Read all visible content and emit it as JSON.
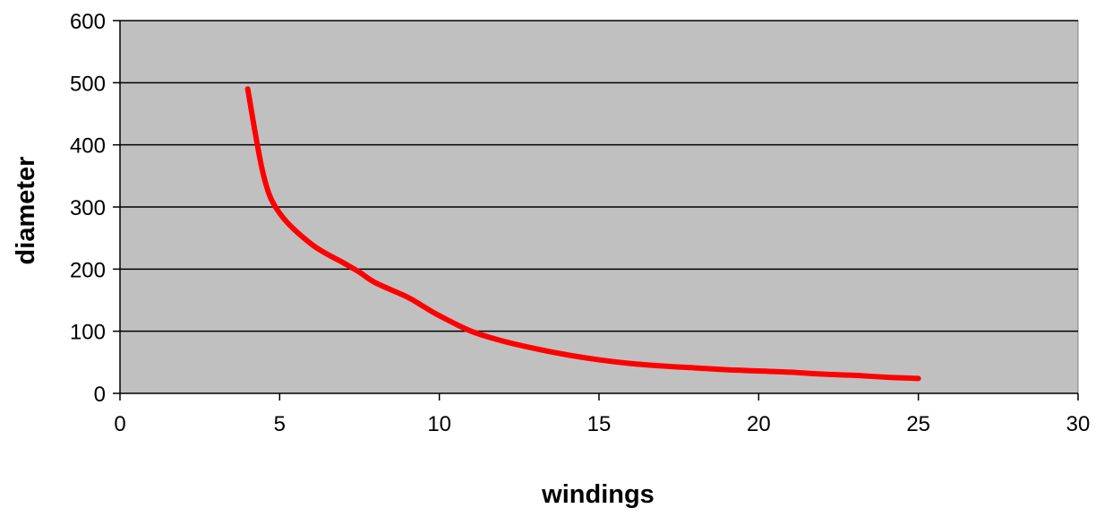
{
  "chart_data": {
    "type": "line",
    "title": "",
    "xlabel": "windings",
    "ylabel": "diameter",
    "xlim": [
      0,
      30
    ],
    "ylim": [
      0,
      600
    ],
    "x_ticks": [
      0,
      5,
      10,
      15,
      20,
      25,
      30
    ],
    "y_ticks": [
      0,
      100,
      200,
      300,
      400,
      500,
      600
    ],
    "grid": "horizontal",
    "legend": "none",
    "series": [
      {
        "color": "#ff0000",
        "x": [
          4,
          4.5,
          5,
          6,
          7,
          7.5,
          8,
          9,
          9.5,
          10,
          11,
          12,
          13,
          14,
          15,
          16,
          17,
          18,
          19,
          20,
          21,
          22,
          23,
          24,
          25
        ],
        "y": [
          490,
          350,
          290,
          240,
          210,
          195,
          178,
          155,
          140,
          125,
          100,
          84,
          72,
          62,
          54,
          48,
          44,
          41,
          38,
          36,
          34,
          31,
          29,
          26,
          24
        ]
      }
    ],
    "plot_background": "#c0c0c0"
  }
}
